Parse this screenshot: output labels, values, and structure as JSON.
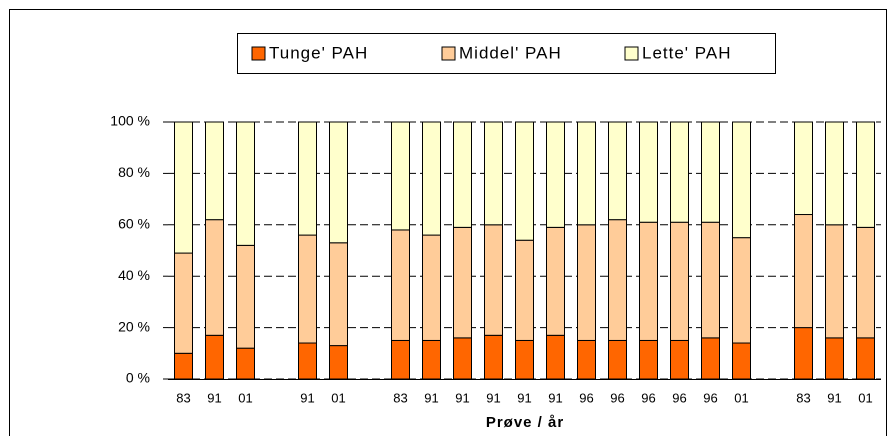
{
  "chart_data": {
    "type": "bar",
    "stacked": true,
    "x_label": "Prøve / år",
    "categories": [
      "83",
      "91",
      "01",
      null,
      "91",
      "01",
      null,
      "83",
      "91",
      "91",
      "91",
      "91",
      "91",
      "96",
      "96",
      "96",
      "96",
      "96",
      "01",
      null,
      "83",
      "91",
      "01"
    ],
    "series": [
      {
        "name": "Tunge' PAH",
        "color": "#ff6600",
        "values": [
          10,
          17,
          12,
          null,
          14,
          13,
          null,
          15,
          15,
          16,
          17,
          15,
          17,
          15,
          15,
          15,
          15,
          16,
          14,
          null,
          20,
          16,
          16
        ]
      },
      {
        "name": "Middel' PAH",
        "color": "#ffcc99",
        "values": [
          39,
          45,
          40,
          null,
          42,
          40,
          null,
          43,
          41,
          43,
          43,
          39,
          42,
          45,
          47,
          46,
          46,
          45,
          41,
          null,
          44,
          44,
          43
        ]
      },
      {
        "name": "Lette' PAH",
        "color": "#ffffcc",
        "values": [
          51,
          38,
          48,
          null,
          44,
          47,
          null,
          42,
          44,
          41,
          40,
          46,
          41,
          40,
          38,
          39,
          39,
          39,
          45,
          null,
          36,
          40,
          41
        ]
      }
    ],
    "ylim": [
      0,
      100
    ],
    "yticks": [
      {
        "value": 0,
        "label": "0 %"
      },
      {
        "value": 20,
        "label": "20 %"
      },
      {
        "value": 40,
        "label": "40 %"
      },
      {
        "value": 60,
        "label": "60 %"
      },
      {
        "value": 80,
        "label": "80 %"
      },
      {
        "value": 100,
        "label": "100 %"
      }
    ],
    "grid": true,
    "legend": "top"
  }
}
